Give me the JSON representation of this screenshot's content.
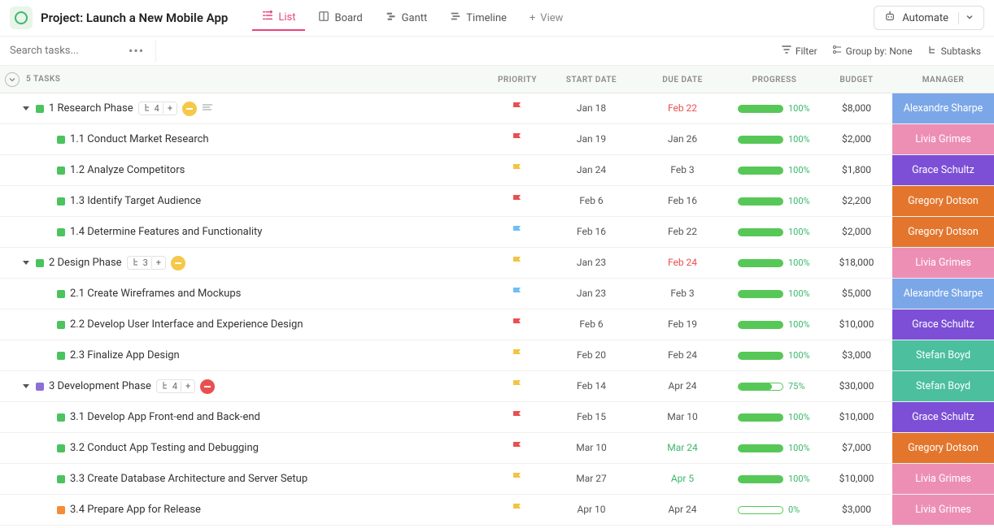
{
  "header": {
    "project_title": "Project: Launch a New Mobile App",
    "tabs": [
      {
        "label": "List",
        "icon": "list-icon",
        "active": true
      },
      {
        "label": "Board",
        "icon": "board-icon",
        "active": false
      },
      {
        "label": "Gantt",
        "icon": "gantt-icon",
        "active": false
      },
      {
        "label": "Timeline",
        "icon": "timeline-icon",
        "active": false
      }
    ],
    "add_view_label": "View",
    "automate_label": "Automate"
  },
  "toolbar": {
    "search_placeholder": "Search tasks...",
    "filter_label": "Filter",
    "group_by_label": "Group by: None",
    "subtasks_label": "Subtasks"
  },
  "columns": {
    "tasks_count": "5 TASKS",
    "priority": "PRIORITY",
    "start_date": "START DATE",
    "due_date": "DUE DATE",
    "progress": "PROGRESS",
    "budget": "BUDGET",
    "manager": "MANAGER"
  },
  "manager_colors": {
    "Alexandre Sharpe": "#7ba7e8",
    "Livia Grimes": "#ed8fb5",
    "Grace Schultz": "#7c4fd6",
    "Gregory Dotson": "#e3762c",
    "Stefan Boyd": "#4bbf9e"
  },
  "rows": [
    {
      "type": "parent",
      "dot": "green",
      "name": "1 Research Phase",
      "subtasks": "4",
      "priority_badge": "yellow",
      "desc": true,
      "flag": "red",
      "start": "Jan 18",
      "due": "Feb 22",
      "due_overdue": true,
      "progress": 100,
      "budget": "$8,000",
      "manager": "Alexandre Sharpe"
    },
    {
      "type": "child",
      "dot": "green",
      "name": "1.1 Conduct Market Research",
      "flag": "red",
      "start": "Jan 19",
      "due": "Jan 26",
      "progress": 100,
      "budget": "$2,000",
      "manager": "Livia Grimes"
    },
    {
      "type": "child",
      "dot": "green",
      "name": "1.2 Analyze Competitors",
      "flag": "yellow",
      "start": "Jan 24",
      "due": "Feb 3",
      "progress": 100,
      "budget": "$1,800",
      "manager": "Grace Schultz"
    },
    {
      "type": "child",
      "dot": "green",
      "name": "1.3 Identify Target Audience",
      "flag": "red",
      "start": "Feb 6",
      "due": "Feb 16",
      "progress": 100,
      "budget": "$2,200",
      "manager": "Gregory Dotson"
    },
    {
      "type": "child",
      "dot": "green",
      "name": "1.4 Determine Features and Functionality",
      "flag": "blue",
      "start": "Feb 16",
      "due": "Feb 22",
      "progress": 100,
      "budget": "$2,000",
      "manager": "Gregory Dotson"
    },
    {
      "type": "parent",
      "dot": "green",
      "name": "2 Design Phase",
      "subtasks": "3",
      "priority_badge": "yellow",
      "flag": "yellow",
      "start": "Jan 23",
      "due": "Feb 24",
      "due_overdue": true,
      "progress": 100,
      "budget": "$18,000",
      "manager": "Livia Grimes"
    },
    {
      "type": "child",
      "dot": "green",
      "name": "2.1 Create Wireframes and Mockups",
      "flag": "blue",
      "start": "Jan 23",
      "due": "Feb 3",
      "progress": 100,
      "budget": "$5,000",
      "manager": "Alexandre Sharpe"
    },
    {
      "type": "child",
      "dot": "green",
      "name": "2.2 Develop User Interface and Experience Design",
      "flag": "red",
      "start": "Feb 6",
      "due": "Feb 19",
      "progress": 100,
      "budget": "$10,000",
      "manager": "Grace Schultz"
    },
    {
      "type": "child",
      "dot": "green",
      "name": "2.3 Finalize App Design",
      "flag": "yellow",
      "start": "Feb 20",
      "due": "Feb 24",
      "progress": 100,
      "budget": "$3,000",
      "manager": "Stefan Boyd"
    },
    {
      "type": "parent",
      "dot": "purple",
      "name": "3 Development Phase",
      "subtasks": "4",
      "priority_badge": "red",
      "flag": "yellow",
      "start": "Feb 14",
      "due": "Apr 24",
      "progress": 75,
      "budget": "$30,000",
      "manager": "Stefan Boyd"
    },
    {
      "type": "child",
      "dot": "green",
      "name": "3.1 Develop App Front-end and Back-end",
      "flag": "red",
      "start": "Feb 15",
      "due": "Mar 10",
      "progress": 100,
      "budget": "$10,000",
      "manager": "Grace Schultz"
    },
    {
      "type": "child",
      "dot": "green",
      "name": "3.2 Conduct App Testing and Debugging",
      "flag": "red",
      "start": "Mar 10",
      "due": "Mar 24",
      "due_green": true,
      "progress": 100,
      "budget": "$7,000",
      "manager": "Gregory Dotson"
    },
    {
      "type": "child",
      "dot": "green",
      "name": "3.3 Create Database Architecture and Server Setup",
      "flag": "yellow",
      "start": "Mar 27",
      "due": "Apr 5",
      "due_green": true,
      "progress": 100,
      "budget": "$10,000",
      "manager": "Livia Grimes"
    },
    {
      "type": "child",
      "dot": "orange",
      "name": "3.4 Prepare App for Release",
      "flag": "yellow",
      "start": "Apr 10",
      "due": "Apr 24",
      "progress": 0,
      "budget": "$3,000",
      "manager": "Livia Grimes"
    }
  ]
}
